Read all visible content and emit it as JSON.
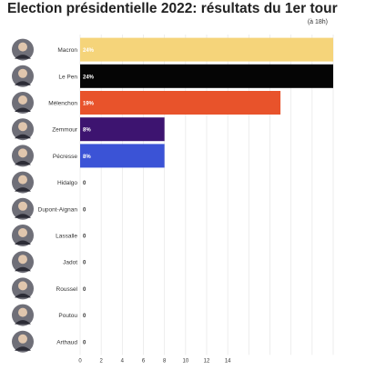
{
  "title": "Election présidentielle 2022: résultats du 1er tour",
  "subtitle": "(à 18h)",
  "chart_data": {
    "type": "bar",
    "orientation": "horizontal",
    "title": "Election présidentielle 2022: résultats du 1er tour",
    "subtitle": "(à 18h)",
    "xlabel": "",
    "ylabel": "",
    "grid": true,
    "xlim": [
      0,
      24
    ],
    "x_ticks": [
      0,
      2,
      4,
      6,
      8,
      10,
      12,
      14
    ],
    "categories": [
      "Macron",
      "Le Pen",
      "Mélenchon",
      "Zemmour",
      "Pécresse",
      "Hidalgo",
      "Dupont-Aignan",
      "Lassalle",
      "Jadot",
      "Roussel",
      "Poutou",
      "Arthaud"
    ],
    "values": [
      24,
      24,
      19,
      8,
      8,
      0,
      0,
      0,
      0,
      0,
      0,
      0
    ],
    "value_labels": [
      "24%",
      "24%",
      "19%",
      "8%",
      "8%",
      "0",
      "0",
      "0",
      "0",
      "0",
      "0",
      "0"
    ],
    "colors": [
      "#f5d47a",
      "#050505",
      "#e8532b",
      "#3d1470",
      "#3b53d6",
      "#cccccc",
      "#cccccc",
      "#cccccc",
      "#cccccc",
      "#cccccc",
      "#cccccc",
      "#cccccc"
    ],
    "value_label_colors": [
      "#ffffff",
      "#ffffff",
      "#ffffff",
      "#ffffff",
      "#ffffff",
      "#333333",
      "#333333",
      "#333333",
      "#333333",
      "#333333",
      "#333333",
      "#333333"
    ]
  }
}
